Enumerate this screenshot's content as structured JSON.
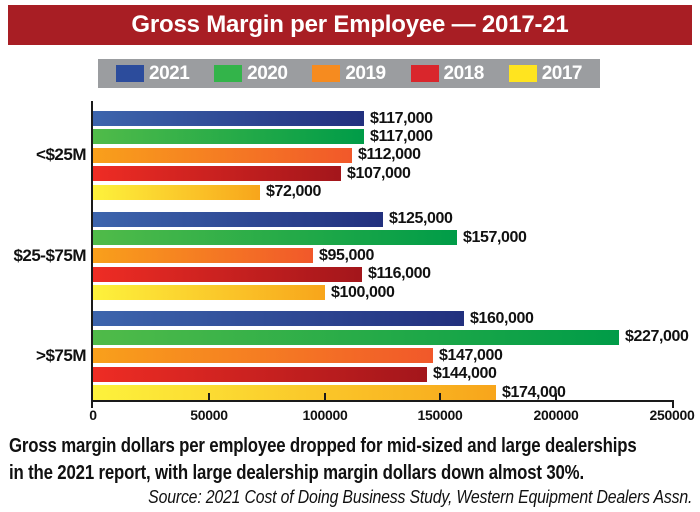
{
  "title": "Gross Margin per Employee — 2017-21",
  "colors": {
    "title_bar": "#a81e24",
    "legend_bg": "#9b9da0",
    "axis": "#1a1a1a",
    "text": "#111111"
  },
  "legend": {
    "items": [
      {
        "label": "2021",
        "color": "#2c4c9c"
      },
      {
        "label": "2020",
        "color": "#33b44a"
      },
      {
        "label": "2019",
        "color": "#f68b1f"
      },
      {
        "label": "2018",
        "color": "#d9262c"
      },
      {
        "label": "2017",
        "color": "#ffe41f"
      }
    ]
  },
  "chart_data": {
    "type": "bar",
    "orientation": "horizontal",
    "title": "Gross Margin per Employee — 2017-21",
    "categories": [
      "<$25M",
      "$25-$75M",
      ">$75M"
    ],
    "series": [
      {
        "name": "2021",
        "values": [
          117000,
          125000,
          160000
        ],
        "labels": [
          "$117,000",
          "$125,000",
          "$160,000"
        ],
        "gradient": [
          "#3d65ad",
          "#22307e"
        ]
      },
      {
        "name": "2020",
        "values": [
          117000,
          157000,
          227000
        ],
        "labels": [
          "$117,000",
          "$157,000",
          "$227,000"
        ],
        "gradient": [
          "#50bb49",
          "#009c48"
        ]
      },
      {
        "name": "2019",
        "values": [
          112000,
          95000,
          147000
        ],
        "labels": [
          "$112,000",
          "$95,000",
          "$147,000"
        ],
        "gradient": [
          "#f9a01b",
          "#f1582a"
        ]
      },
      {
        "name": "2018",
        "values": [
          107000,
          116000,
          144000
        ],
        "labels": [
          "$107,000",
          "$116,000",
          "$144,000"
        ],
        "gradient": [
          "#ee2c24",
          "#a3161b"
        ]
      },
      {
        "name": "2017",
        "values": [
          72000,
          100000,
          174000
        ],
        "labels": [
          "$72,000",
          "$100,000",
          "$174,000"
        ],
        "gradient": [
          "#fdf23c",
          "#f8a51b"
        ]
      }
    ],
    "xlim": [
      0,
      250000
    ],
    "xticks": [
      0,
      50000,
      100000,
      150000,
      200000,
      250000
    ],
    "xtick_labels": [
      "0",
      "50000",
      "100000",
      "150000",
      "200000",
      "250000"
    ],
    "legend_position": "top",
    "grid": false
  },
  "caption": {
    "line1": "Gross margin dollars per employee dropped for mid-sized and large dealerships",
    "line2": "in the 2021 report, with large dealership margin dollars down almost 30%."
  },
  "source": "Source: 2021 Cost of Doing Business Study, Western Equipment Dealers Assn."
}
